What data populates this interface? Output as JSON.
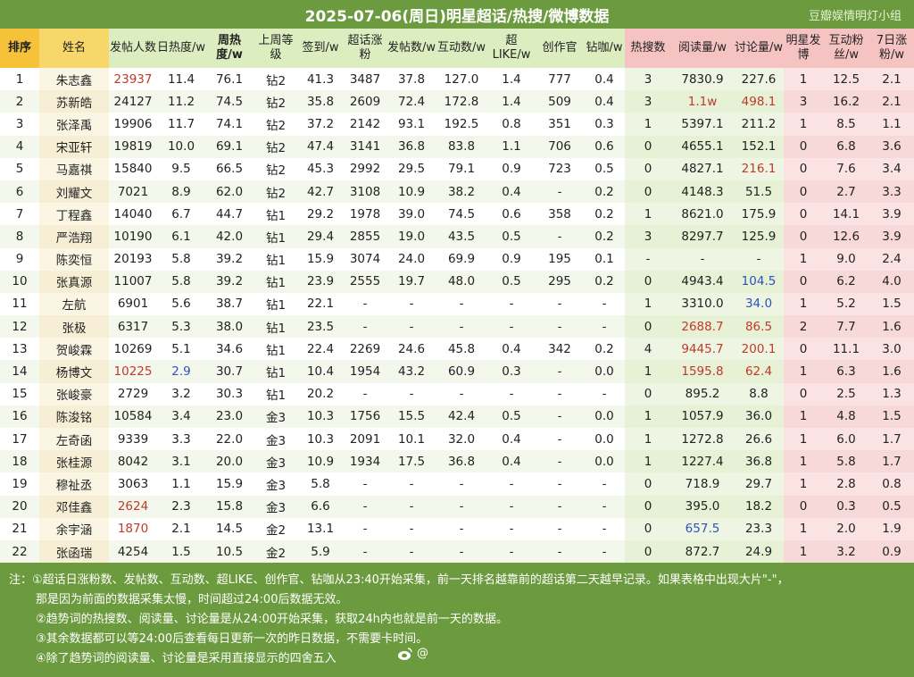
{
  "header": {
    "title": "2025-07-06(周日)明星超话/热搜/微博数据",
    "credit": "豆瓣娱情明灯小组"
  },
  "columns": [
    {
      "label": "排序",
      "style": "rank"
    },
    {
      "label": "姓名",
      "style": "name"
    },
    {
      "label": "发帖人数",
      "style": "mid"
    },
    {
      "label": "日热度/w",
      "style": "mid"
    },
    {
      "label": "周热度/w",
      "style": "mid",
      "bold": true
    },
    {
      "label": "上周等级",
      "style": "mid"
    },
    {
      "label": "签到/w",
      "style": "mid"
    },
    {
      "label": "超话涨粉",
      "style": "mid"
    },
    {
      "label": "发帖数/w",
      "style": "mid"
    },
    {
      "label": "互动数/w",
      "style": "mid"
    },
    {
      "label": "超LIKE/w",
      "style": "mid"
    },
    {
      "label": "创作官",
      "style": "mid"
    },
    {
      "label": "钻咖/w",
      "style": "mid"
    },
    {
      "label": "热搜数",
      "style": "pink"
    },
    {
      "label": "阅读量/w",
      "style": "pink"
    },
    {
      "label": "讨论量/w",
      "style": "pink"
    },
    {
      "label": "明星发博",
      "style": "pink"
    },
    {
      "label": "互动粉丝/w",
      "style": "pink"
    },
    {
      "label": "7日涨粉/w",
      "style": "pink"
    }
  ],
  "rows": [
    [
      "1",
      "朱志鑫",
      "23937",
      "11.4",
      "76.1",
      "钻2",
      "41.3",
      "3487",
      "37.8",
      "127.0",
      "1.4",
      "777",
      "0.4",
      "3",
      "7830.9",
      "227.6",
      "1",
      "12.5",
      "2.1"
    ],
    [
      "2",
      "苏新皓",
      "24127",
      "11.2",
      "74.5",
      "钻2",
      "35.8",
      "2609",
      "72.4",
      "172.8",
      "1.4",
      "509",
      "0.4",
      "3",
      "1.1w",
      "498.1",
      "3",
      "16.2",
      "2.1"
    ],
    [
      "3",
      "张泽禹",
      "19906",
      "11.7",
      "74.1",
      "钻2",
      "37.2",
      "2142",
      "93.1",
      "192.5",
      "0.8",
      "351",
      "0.3",
      "1",
      "5397.1",
      "211.2",
      "1",
      "8.5",
      "1.1"
    ],
    [
      "4",
      "宋亚轩",
      "19819",
      "10.0",
      "69.1",
      "钻2",
      "47.4",
      "3141",
      "36.8",
      "83.8",
      "1.1",
      "706",
      "0.6",
      "0",
      "4655.1",
      "152.1",
      "0",
      "6.8",
      "3.6"
    ],
    [
      "5",
      "马嘉祺",
      "15840",
      "9.5",
      "66.5",
      "钻2",
      "45.3",
      "2992",
      "29.5",
      "79.1",
      "0.9",
      "723",
      "0.5",
      "0",
      "4827.1",
      "216.1",
      "0",
      "7.6",
      "3.4"
    ],
    [
      "6",
      "刘耀文",
      "7021",
      "8.9",
      "62.0",
      "钻2",
      "42.7",
      "3108",
      "10.9",
      "38.2",
      "0.4",
      "-",
      "0.2",
      "0",
      "4148.3",
      "51.5",
      "0",
      "2.7",
      "3.3"
    ],
    [
      "7",
      "丁程鑫",
      "14040",
      "6.7",
      "44.7",
      "钻1",
      "29.2",
      "1978",
      "39.0",
      "74.5",
      "0.6",
      "358",
      "0.2",
      "1",
      "8621.0",
      "175.9",
      "0",
      "14.1",
      "3.9"
    ],
    [
      "8",
      "严浩翔",
      "10190",
      "6.1",
      "42.0",
      "钻1",
      "29.4",
      "2855",
      "19.0",
      "43.5",
      "0.5",
      "-",
      "0.2",
      "3",
      "8297.7",
      "125.9",
      "0",
      "12.6",
      "3.9"
    ],
    [
      "9",
      "陈奕恒",
      "20193",
      "5.8",
      "39.2",
      "钻1",
      "15.9",
      "3074",
      "24.0",
      "69.9",
      "0.9",
      "195",
      "0.1",
      "-",
      "-",
      "-",
      "1",
      "9.0",
      "2.4"
    ],
    [
      "10",
      "张真源",
      "11007",
      "5.8",
      "39.2",
      "钻1",
      "23.9",
      "2555",
      "19.7",
      "48.0",
      "0.5",
      "295",
      "0.2",
      "0",
      "4943.4",
      "104.5",
      "0",
      "6.2",
      "4.0"
    ],
    [
      "11",
      "左航",
      "6901",
      "5.6",
      "38.7",
      "钻1",
      "22.1",
      "-",
      "-",
      "-",
      "-",
      "-",
      "-",
      "1",
      "3310.0",
      "34.0",
      "1",
      "5.2",
      "1.5"
    ],
    [
      "12",
      "张极",
      "6317",
      "5.3",
      "38.0",
      "钻1",
      "23.5",
      "-",
      "-",
      "-",
      "-",
      "-",
      "-",
      "0",
      "2688.7",
      "86.5",
      "2",
      "7.7",
      "1.6"
    ],
    [
      "13",
      "贺峻霖",
      "10269",
      "5.1",
      "34.6",
      "钻1",
      "22.4",
      "2269",
      "24.6",
      "45.8",
      "0.4",
      "342",
      "0.2",
      "4",
      "9445.7",
      "200.1",
      "0",
      "11.1",
      "3.0"
    ],
    [
      "14",
      "杨博文",
      "10225",
      "2.9",
      "30.7",
      "钻1",
      "10.4",
      "1954",
      "43.2",
      "60.9",
      "0.3",
      "-",
      "0.0",
      "1",
      "1595.8",
      "62.4",
      "1",
      "6.3",
      "1.6"
    ],
    [
      "15",
      "张峻豪",
      "2729",
      "3.2",
      "30.3",
      "钻1",
      "20.2",
      "-",
      "-",
      "-",
      "-",
      "-",
      "-",
      "0",
      "895.2",
      "8.8",
      "0",
      "2.5",
      "1.3"
    ],
    [
      "16",
      "陈浚铭",
      "10584",
      "3.4",
      "23.0",
      "金3",
      "10.3",
      "1756",
      "15.5",
      "42.4",
      "0.5",
      "-",
      "0.0",
      "1",
      "1057.9",
      "36.0",
      "1",
      "4.8",
      "1.5"
    ],
    [
      "17",
      "左奇函",
      "9339",
      "3.3",
      "22.0",
      "金3",
      "10.3",
      "2091",
      "10.1",
      "32.0",
      "0.4",
      "-",
      "0.0",
      "1",
      "1272.8",
      "26.6",
      "1",
      "6.0",
      "1.7"
    ],
    [
      "18",
      "张桂源",
      "8042",
      "3.1",
      "20.0",
      "金3",
      "10.9",
      "1934",
      "17.5",
      "36.8",
      "0.4",
      "-",
      "0.0",
      "1",
      "1227.4",
      "36.8",
      "1",
      "5.8",
      "1.7"
    ],
    [
      "19",
      "穆祉丞",
      "3063",
      "1.1",
      "15.9",
      "金3",
      "5.8",
      "-",
      "-",
      "-",
      "-",
      "-",
      "-",
      "0",
      "718.9",
      "29.7",
      "1",
      "2.8",
      "0.8"
    ],
    [
      "20",
      "邓佳鑫",
      "2624",
      "2.3",
      "15.8",
      "金3",
      "6.6",
      "-",
      "-",
      "-",
      "-",
      "-",
      "-",
      "0",
      "395.0",
      "18.2",
      "0",
      "0.3",
      "0.5"
    ],
    [
      "21",
      "余宇涵",
      "1870",
      "2.1",
      "14.5",
      "金2",
      "13.1",
      "-",
      "-",
      "-",
      "-",
      "-",
      "-",
      "0",
      "657.5",
      "23.3",
      "1",
      "2.0",
      "1.9"
    ],
    [
      "22",
      "张函瑞",
      "4254",
      "1.5",
      "10.5",
      "金2",
      "5.9",
      "-",
      "-",
      "-",
      "-",
      "-",
      "-",
      "0",
      "872.7",
      "24.9",
      "1",
      "3.2",
      "0.9"
    ]
  ],
  "colors": {
    "background": "#6c9a3e",
    "highlight_red": "#c0392b",
    "highlight_blue": "#2d52b8",
    "header_rank": "#f6c23a",
    "header_pink": "#f6c3c3"
  },
  "highlights": [
    {
      "row": 0,
      "col": 2,
      "color": "red"
    },
    {
      "row": 1,
      "col": 14,
      "color": "red"
    },
    {
      "row": 1,
      "col": 15,
      "color": "red"
    },
    {
      "row": 4,
      "col": 15,
      "color": "red"
    },
    {
      "row": 9,
      "col": 15,
      "color": "blue"
    },
    {
      "row": 10,
      "col": 15,
      "color": "blue"
    },
    {
      "row": 11,
      "col": 14,
      "color": "red"
    },
    {
      "row": 11,
      "col": 15,
      "color": "red"
    },
    {
      "row": 12,
      "col": 14,
      "color": "red"
    },
    {
      "row": 12,
      "col": 15,
      "color": "red"
    },
    {
      "row": 13,
      "col": 2,
      "color": "red"
    },
    {
      "row": 13,
      "col": 3,
      "color": "blue"
    },
    {
      "row": 13,
      "col": 14,
      "color": "red"
    },
    {
      "row": 13,
      "col": 15,
      "color": "red"
    },
    {
      "row": 19,
      "col": 2,
      "color": "red"
    },
    {
      "row": 20,
      "col": 2,
      "color": "red"
    },
    {
      "row": 20,
      "col": 14,
      "color": "blue"
    }
  ],
  "notes": [
    "注：①超话日涨粉数、发帖数、互动数、超LIKE、创作官、钻咖从23:40开始采集，前一天排名越靠前的超话第二天越早记录。如果表格中出现大片\"-\"，",
    "那是因为前面的数据采集太慢，时间超过24:00后数据无效。",
    "②趋势词的热搜数、阅读量、讨论量是从24:00开始采集，获取24h内也就是前一天的数据。",
    "③其余数据都可以等24:00后查看每日更新一次的昨日数据，不需要卡时间。",
    "④除了趋势词的阅读量、讨论量是采用直接显示的四舍五入"
  ],
  "watermark": "@"
}
